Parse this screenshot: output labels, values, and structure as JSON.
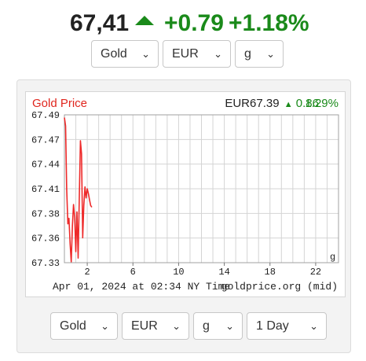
{
  "headline": {
    "price": "67,41",
    "change": "+0.79",
    "change_pct": "+1.18%",
    "direction_icon": "triangle-up",
    "up_color": "#1a8a1a"
  },
  "top_selects": {
    "metal": "Gold",
    "currency": "EUR",
    "unit": "g"
  },
  "bottom_selects": {
    "metal": "Gold",
    "currency": "EUR",
    "unit": "g",
    "period": "1 Day"
  },
  "chart_data": {
    "type": "line",
    "title": "Gold Price",
    "title_color": "#e0261e",
    "quote": {
      "price": "EUR67.39",
      "change": "0.86",
      "change_pct": "1.29%",
      "direction_icon": "triangle-up"
    },
    "unit_label": "g",
    "caption_left": "Apr 01, 2024 at 02:34 NY Time",
    "caption_right": "goldprice.org (mid)",
    "xlim": [
      0,
      24
    ],
    "ylim": [
      67.33,
      67.49
    ],
    "x_ticks": [
      "2",
      "6",
      "10",
      "14",
      "18",
      "22"
    ],
    "y_ticks": [
      "67.49",
      "67.47",
      "67.44",
      "67.41",
      "67.38",
      "67.36",
      "67.33"
    ],
    "grid": true,
    "line_color": "#ee2a2a",
    "series": [
      {
        "x": [
          0.0,
          0.1,
          0.2,
          0.3,
          0.4,
          0.5,
          0.6,
          0.7,
          0.8,
          0.9,
          1.0,
          1.1,
          1.2,
          1.3,
          1.4,
          1.5,
          1.6,
          1.7,
          1.8,
          1.9,
          2.0,
          2.1,
          2.2,
          2.3,
          2.4
        ],
        "values": [
          67.487,
          67.478,
          67.41,
          67.372,
          67.378,
          67.35,
          67.331,
          67.37,
          67.393,
          67.379,
          67.342,
          67.385,
          67.335,
          67.398,
          67.462,
          67.448,
          67.357,
          67.392,
          67.412,
          67.4,
          67.41,
          67.405,
          67.398,
          67.392,
          67.39
        ]
      }
    ]
  }
}
